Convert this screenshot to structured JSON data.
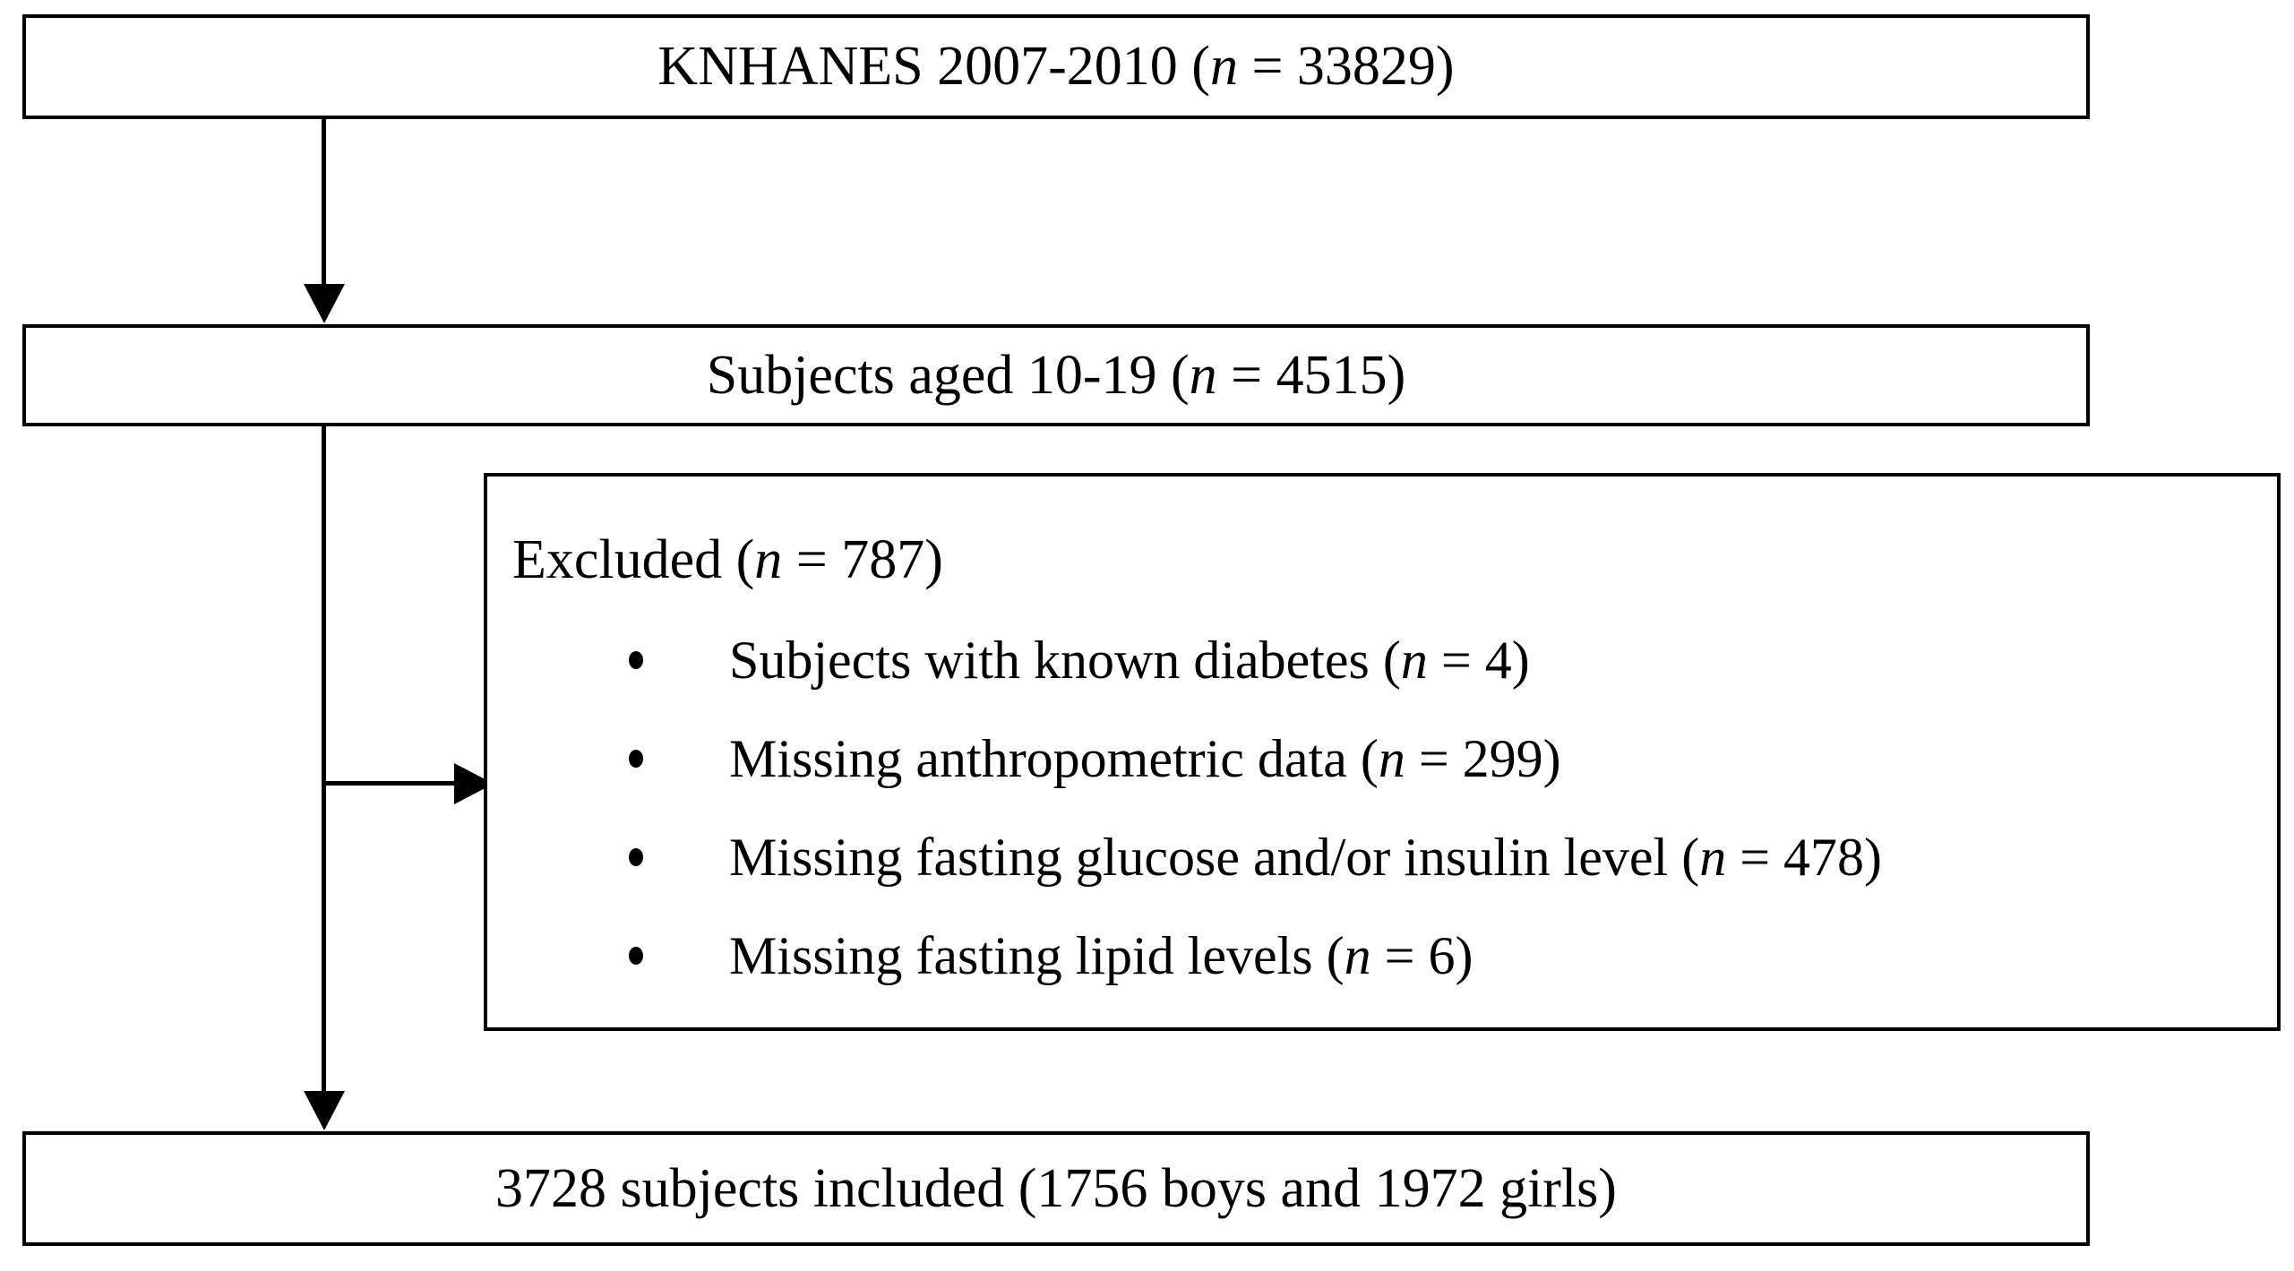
{
  "diagram": {
    "source_box": {
      "prefix": "KNHANES 2007-2010 (",
      "n": "n",
      "suffix": " = 33829)"
    },
    "aged_box": {
      "prefix": "Subjects aged 10-19 (",
      "n": "n",
      "suffix": " = 4515)"
    },
    "excluded_box": {
      "header": {
        "prefix": "Excluded (",
        "n": "n",
        "suffix": " = 787)"
      },
      "items": [
        {
          "prefix": "Subjects with known diabetes (",
          "n": "n",
          "suffix": " = 4)"
        },
        {
          "prefix": "Missing anthropometric data (",
          "n": "n",
          "suffix": " = 299)"
        },
        {
          "prefix": "Missing fasting glucose and/or insulin level (",
          "n": "n",
          "suffix": " = 478)"
        },
        {
          "prefix": "Missing fasting lipid levels (",
          "n": "n",
          "suffix": " = 6)"
        }
      ]
    },
    "included_box": {
      "text": "3728 subjects included (1756 boys and 1972 girls)"
    },
    "colors": {
      "line": "#000000",
      "border": "#000000",
      "background": "#ffffff",
      "text": "#000000"
    }
  }
}
